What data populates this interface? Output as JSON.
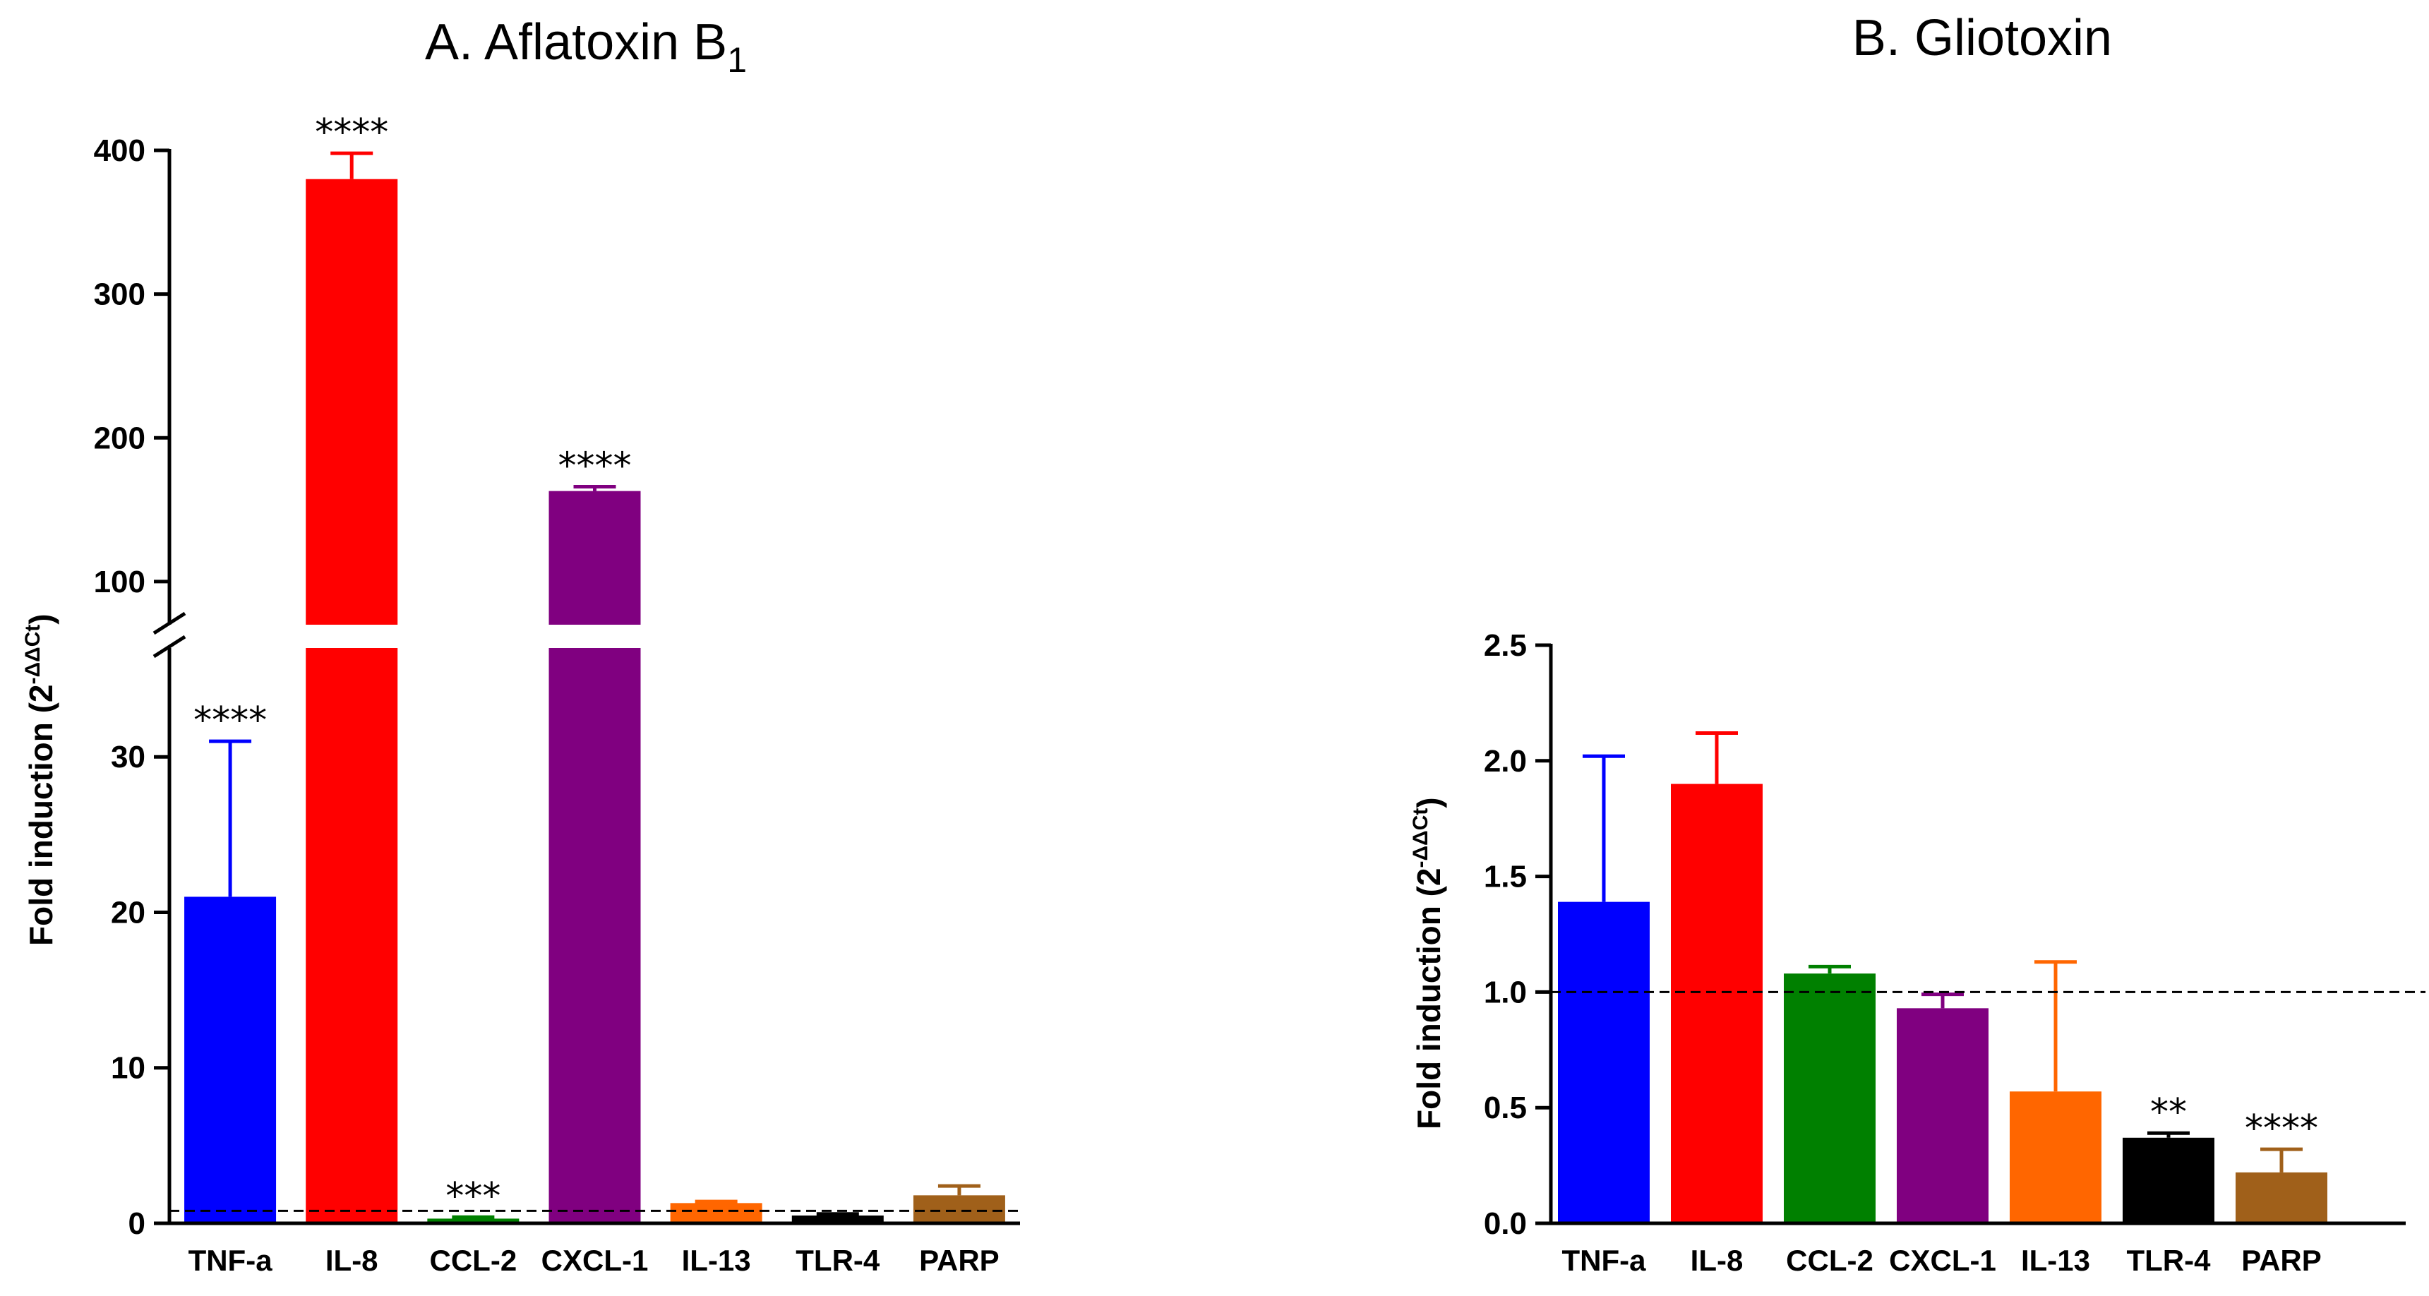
{
  "chart_data": [
    {
      "type": "bar",
      "panel": "A",
      "title_main": "A. Aflatoxin B",
      "title_sub": "1",
      "ylabel_main": "Fold induction  (2",
      "ylabel_sup": "-ΔΔCt",
      "ylabel_close": ")",
      "categories": [
        "TNF-a",
        "IL-8",
        "CCL-2",
        "CXCL-1",
        "IL-13",
        "TLR-4",
        "PARP"
      ],
      "values": [
        21,
        380,
        0.3,
        163,
        1.3,
        0.5,
        1.8
      ],
      "errors": [
        10,
        18,
        0.1,
        3,
        0.1,
        0.1,
        0.6
      ],
      "colors": [
        "#0000ff",
        "#ff0000",
        "#008000",
        "#800080",
        "#ff6600",
        "#000000",
        "#a0601a"
      ],
      "significance": [
        "****",
        "****",
        "***",
        "****",
        "",
        "",
        ""
      ],
      "baseline": 0.8,
      "broken_axis": true,
      "y_lower_range": [
        0,
        37
      ],
      "y_upper_range": [
        70,
        400
      ],
      "lower_ticks": [
        "0",
        "10",
        "20",
        "30"
      ],
      "upper_ticks": [
        "100",
        "200",
        "300",
        "400"
      ]
    },
    {
      "type": "bar",
      "panel": "B",
      "title_main": "B. Gliotoxin",
      "ylabel_main": "Fold induction  (2",
      "ylabel_sup": "-ΔΔCt",
      "ylabel_close": ")",
      "categories": [
        "TNF-a",
        "IL-8",
        "CCL-2",
        "CXCL-1",
        "IL-13",
        "TLR-4",
        "PARP"
      ],
      "values": [
        1.39,
        1.9,
        1.08,
        0.93,
        0.57,
        0.37,
        0.22
      ],
      "errors": [
        0.63,
        0.22,
        0.03,
        0.06,
        0.56,
        0.02,
        0.1
      ],
      "colors": [
        "#0000ff",
        "#ff0000",
        "#008000",
        "#800080",
        "#ff6600",
        "#000000",
        "#a0601a"
      ],
      "significance": [
        "",
        "",
        "",
        "",
        "",
        "**",
        "****"
      ],
      "baseline": 1.0,
      "ylim": [
        0,
        2.5
      ],
      "ticks": [
        "0.0",
        "0.5",
        "1.0",
        "1.5",
        "2.0",
        "2.5"
      ]
    }
  ]
}
